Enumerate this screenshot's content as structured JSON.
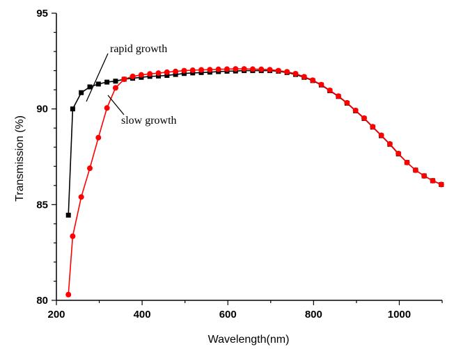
{
  "chart_data": {
    "type": "line",
    "title": "",
    "xlabel": "Wavelength(nm)",
    "ylabel": "Transmission (%)",
    "xlim": [
      200,
      1100
    ],
    "ylim": [
      80,
      95
    ],
    "x_ticks": [
      200,
      400,
      600,
      800,
      1000
    ],
    "y_ticks": [
      80,
      85,
      90,
      95
    ],
    "grid": false,
    "annotations": [
      {
        "text": "rapid growth",
        "series": 0
      },
      {
        "text": "slow growth",
        "series": 1
      }
    ],
    "series": [
      {
        "name": "rapid growth",
        "color": "#000000",
        "marker": "square",
        "x": [
          228,
          238,
          258,
          278,
          298,
          318,
          338,
          358,
          378,
          398,
          418,
          438,
          458,
          478,
          498,
          518,
          538,
          558,
          578,
          598,
          618,
          638,
          658,
          678,
          698,
          718,
          738,
          758,
          778,
          798,
          818,
          838,
          858,
          878,
          898,
          918,
          938,
          958,
          978,
          998,
          1018,
          1038,
          1058,
          1078,
          1098
        ],
        "y": [
          84.45,
          90.0,
          90.85,
          91.15,
          91.3,
          91.4,
          91.45,
          91.55,
          91.6,
          91.65,
          91.7,
          91.72,
          91.75,
          91.8,
          91.85,
          91.88,
          91.9,
          91.92,
          91.95,
          91.97,
          91.98,
          92.0,
          92.0,
          92.0,
          92.0,
          91.97,
          91.9,
          91.8,
          91.65,
          91.48,
          91.25,
          90.95,
          90.65,
          90.3,
          89.9,
          89.5,
          89.05,
          88.6,
          88.15,
          87.65,
          87.2,
          86.8,
          86.5,
          86.25,
          86.05
        ]
      },
      {
        "name": "slow growth",
        "color": "#ff0000",
        "marker": "circle",
        "x": [
          228,
          238,
          258,
          278,
          298,
          318,
          338,
          358,
          378,
          398,
          418,
          438,
          458,
          478,
          498,
          518,
          538,
          558,
          578,
          598,
          618,
          638,
          658,
          678,
          698,
          718,
          738,
          758,
          778,
          798,
          818,
          838,
          858,
          878,
          898,
          918,
          938,
          958,
          978,
          998,
          1018,
          1038,
          1058,
          1078,
          1098
        ],
        "y": [
          80.3,
          83.35,
          85.4,
          86.9,
          88.5,
          90.05,
          91.1,
          91.55,
          91.7,
          91.78,
          91.83,
          91.87,
          91.92,
          91.96,
          92.0,
          92.02,
          92.04,
          92.05,
          92.07,
          92.08,
          92.09,
          92.09,
          92.08,
          92.07,
          92.05,
          92.0,
          91.94,
          91.84,
          91.68,
          91.5,
          91.27,
          90.97,
          90.67,
          90.32,
          89.92,
          89.52,
          89.07,
          88.62,
          88.17,
          87.67,
          87.2,
          86.8,
          86.5,
          86.25,
          86.05
        ]
      }
    ]
  }
}
